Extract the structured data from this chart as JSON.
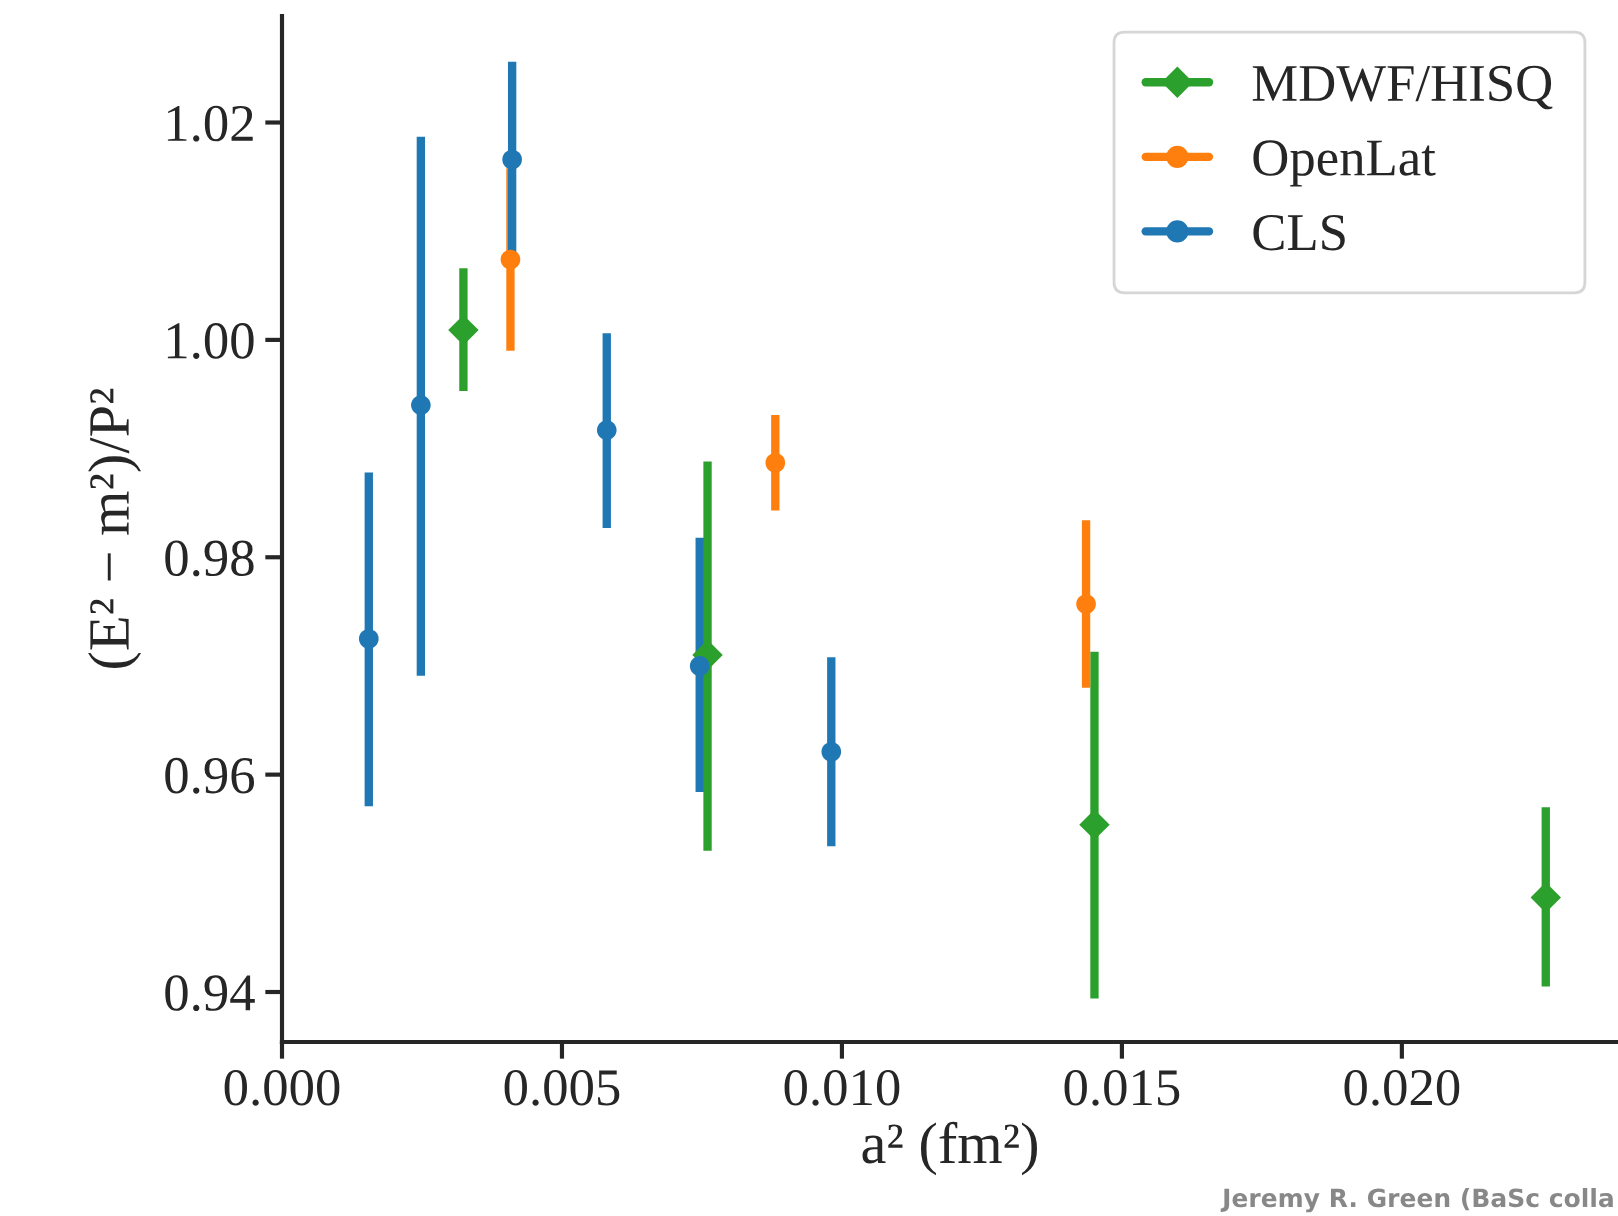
{
  "chart_data": {
    "type": "scatter",
    "xlabel": "a² (fm²)",
    "ylabel": "(E² − m²)/P²",
    "xlim": [
      0.0,
      0.02386
    ],
    "ylim": [
      0.9354,
      1.0298
    ],
    "xticks": [
      {
        "value": 0.0,
        "label": "0.000"
      },
      {
        "value": 0.005,
        "label": "0.005"
      },
      {
        "value": 0.01,
        "label": "0.010"
      },
      {
        "value": 0.015,
        "label": "0.015"
      },
      {
        "value": 0.02,
        "label": "0.020"
      }
    ],
    "yticks": [
      0.94,
      0.96,
      0.98,
      {
        "value": 1.0,
        "label": "1.00"
      },
      1.02
    ],
    "grid": false,
    "legend": "top right",
    "series": [
      {
        "name": "MDWF/HISQ",
        "color": "#2ca02c",
        "marker": "diamond",
        "x": [
          0.00324,
          0.0076,
          0.01451,
          0.02257
        ],
        "values": [
          1.0009,
          0.971,
          0.9554,
          0.9487
        ],
        "errors": [
          [
            0.9953,
            1.0066
          ],
          [
            0.953,
            0.9888
          ],
          [
            0.9394,
            0.9713
          ],
          [
            0.9405,
            0.957
          ]
        ]
      },
      {
        "name": "OpenLat",
        "color": "#ff7f0e",
        "marker": "circle",
        "x": [
          0.00408,
          0.00881,
          0.01436
        ],
        "values": [
          1.0074,
          0.9887,
          0.9757
        ],
        "errors": [
          [
            0.999,
            1.0158
          ],
          [
            0.9843,
            0.9931
          ],
          [
            0.968,
            0.9834
          ]
        ]
      },
      {
        "name": "CLS",
        "color": "#1f77b4",
        "marker": "circle",
        "x": [
          0.00155,
          0.00248,
          0.00411,
          0.0058,
          0.00746,
          0.00981
        ],
        "values": [
          0.9725,
          0.994,
          1.0166,
          0.9917,
          0.97,
          0.9621
        ],
        "errors": [
          [
            0.9571,
            0.9878
          ],
          [
            0.9691,
            1.0187
          ],
          [
            1.0076,
            1.0256
          ],
          [
            0.9827,
            1.0006
          ],
          [
            0.9584,
            0.9818
          ],
          [
            0.9534,
            0.9708
          ]
        ]
      }
    ],
    "annotations": [
      "Jeremy R. Green (BaSc colla"
    ]
  }
}
